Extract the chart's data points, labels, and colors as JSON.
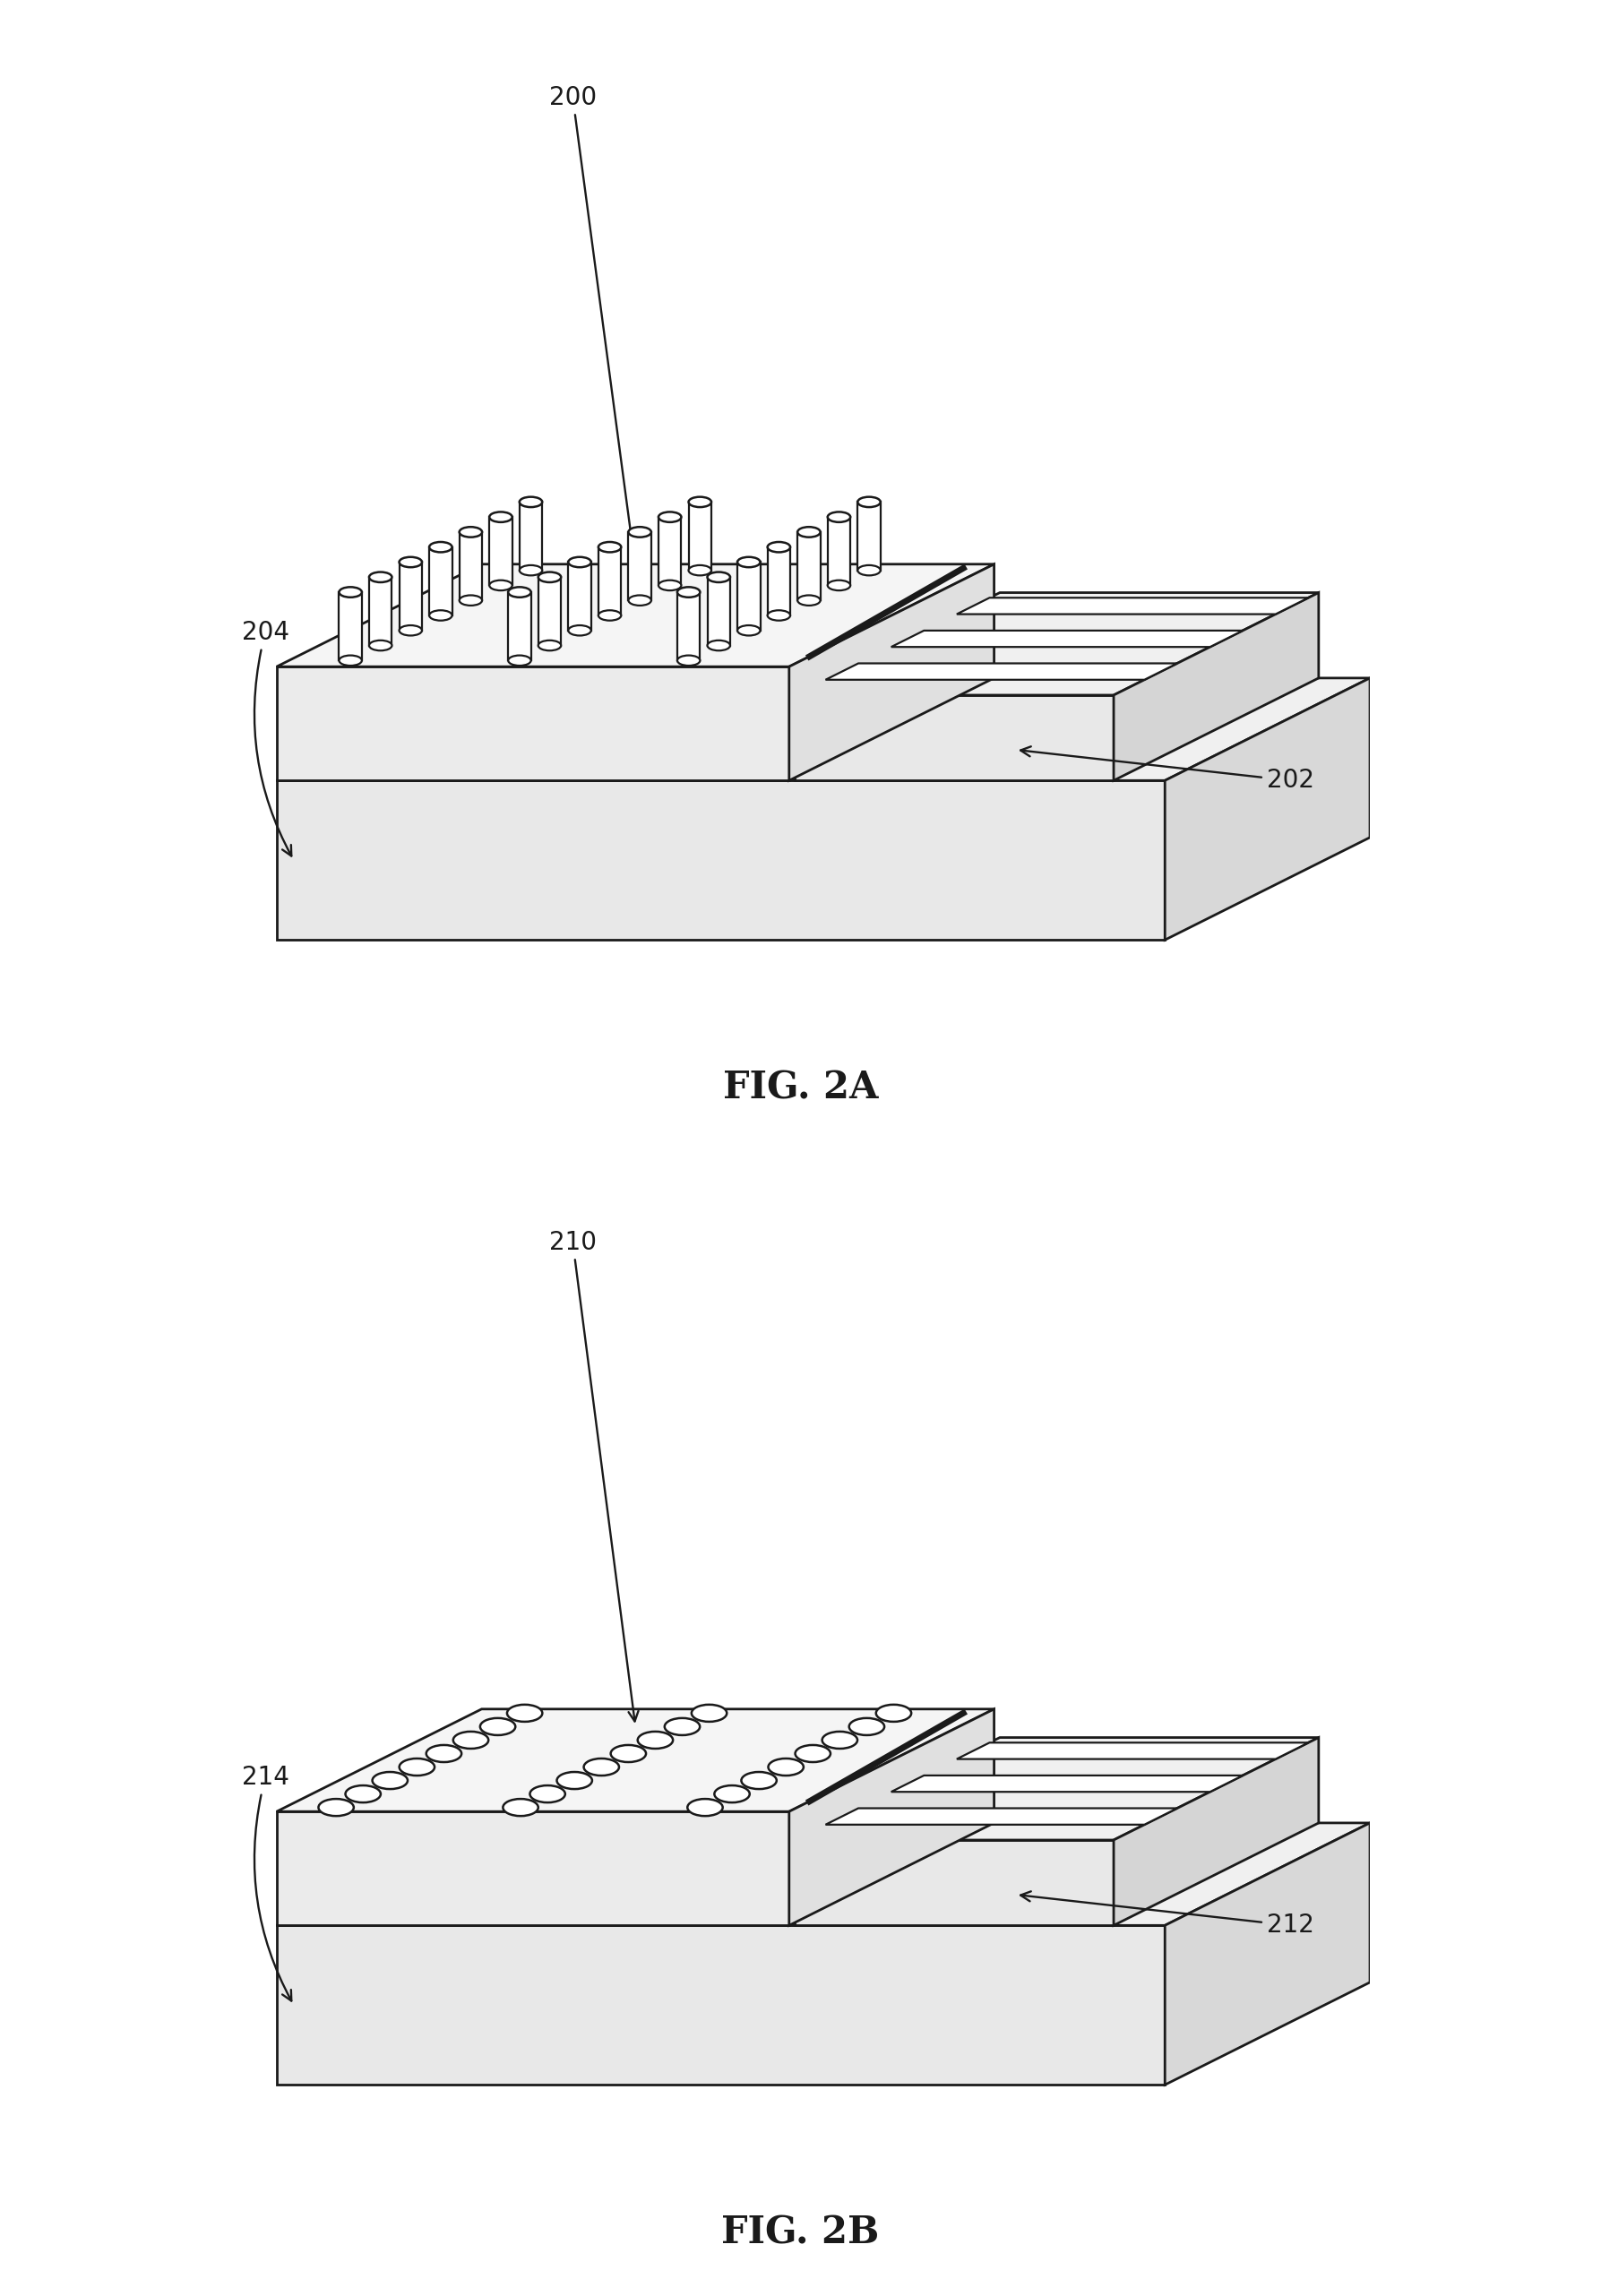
{
  "fig_width": 17.87,
  "fig_height": 25.63,
  "background_color": "#ffffff",
  "line_color": "#1a1a1a",
  "line_width": 2.0,
  "fill_top": "#f5f5f5",
  "fill_side_left": "#e0e0e0",
  "fill_front": "#ebebeb",
  "fill_right_block_top": "#f5f5f5",
  "fill_right_block_side": "#d5d5d5",
  "fill_right_block_front": "#e8e8e8",
  "label_fontsize": 20,
  "caption_fontsize": 30,
  "fig2a_label": "FIG. 2A",
  "fig2b_label": "FIG. 2B",
  "ref200": "200",
  "ref202": "202",
  "ref204": "204",
  "ref210": "210",
  "ref212": "212",
  "ref214": "214",
  "skx": 1.8,
  "sky": 0.9,
  "2a_nrod_cols": 3,
  "2a_nrod_rows": 7,
  "2b_nhole_cols": 3,
  "2b_nhole_rows": 8
}
